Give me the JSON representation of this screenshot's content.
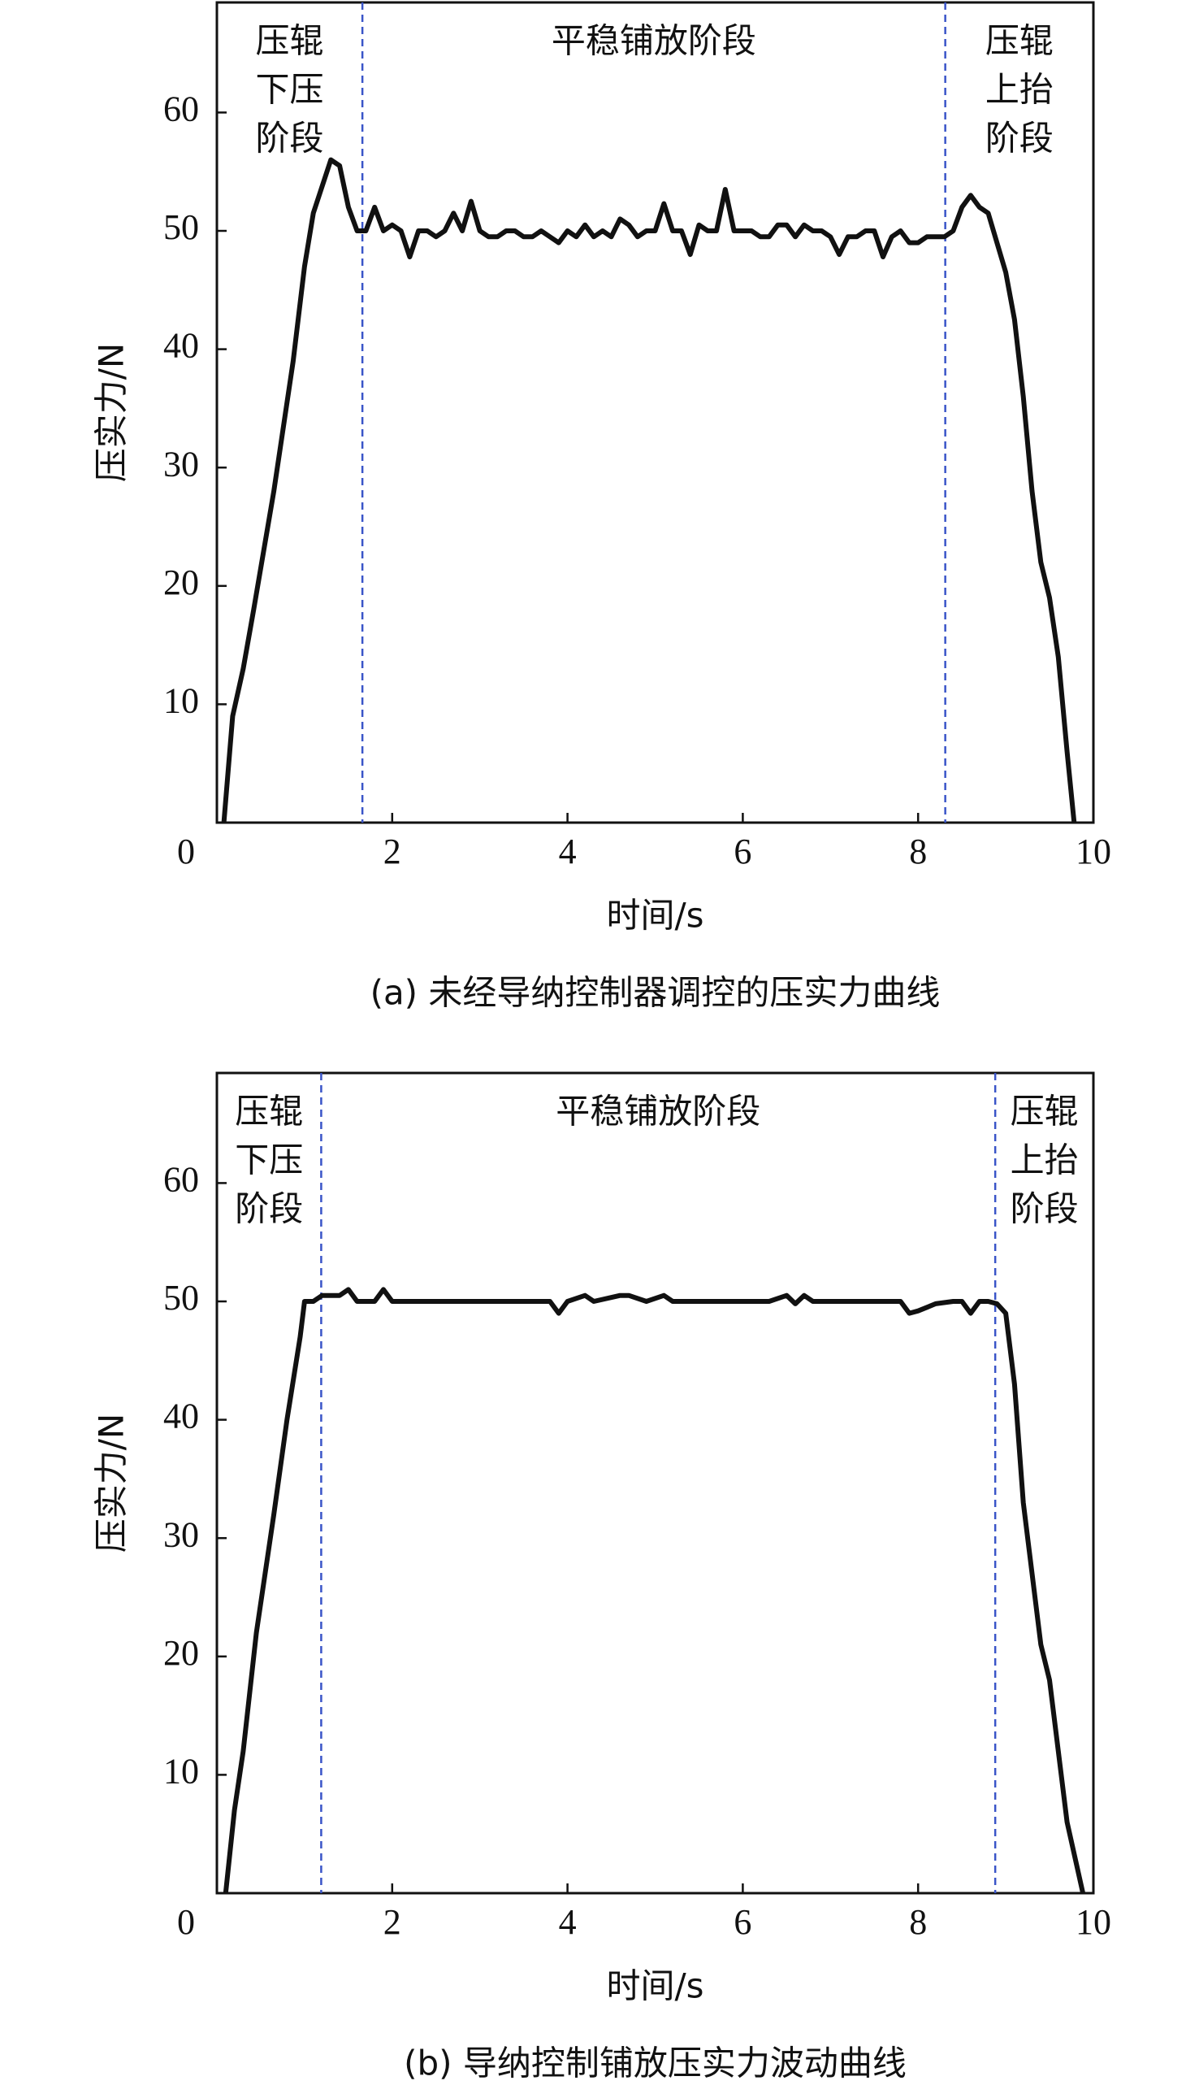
{
  "chart_data": [
    {
      "type": "line",
      "caption": "(a) 未经导纳控制器调控的压实力曲线",
      "xlabel": "时间/s",
      "ylabel": "压实力/N",
      "xlim": [
        0,
        10
      ],
      "ylim": [
        0,
        69.3
      ],
      "xticks": [
        0,
        2,
        4,
        6,
        8,
        10
      ],
      "yticks": [
        10,
        20,
        30,
        40,
        50,
        60
      ],
      "color": "#111111",
      "vline_color": "#3a55c8",
      "vlines": [
        1.66,
        8.31
      ],
      "phase_labels": [
        [
          "压辊",
          "下压",
          "阶段"
        ],
        [
          "平稳铺放阶段"
        ],
        [
          "压辊",
          "上抬",
          "阶段"
        ]
      ],
      "x": [
        0.08,
        0.18,
        0.3,
        0.42,
        0.65,
        0.87,
        1.0,
        1.1,
        1.3,
        1.4,
        1.5,
        1.6,
        1.7,
        1.8,
        1.9,
        2.0,
        2.1,
        2.2,
        2.3,
        2.4,
        2.5,
        2.6,
        2.7,
        2.8,
        2.9,
        3.0,
        3.1,
        3.2,
        3.3,
        3.4,
        3.5,
        3.6,
        3.7,
        3.8,
        3.9,
        4.0,
        4.1,
        4.2,
        4.3,
        4.4,
        4.5,
        4.6,
        4.7,
        4.8,
        4.9,
        5.0,
        5.1,
        5.2,
        5.3,
        5.4,
        5.5,
        5.6,
        5.7,
        5.8,
        5.9,
        6.0,
        6.1,
        6.2,
        6.3,
        6.4,
        6.5,
        6.6,
        6.7,
        6.8,
        6.9,
        7.0,
        7.1,
        7.2,
        7.3,
        7.4,
        7.5,
        7.6,
        7.7,
        7.8,
        7.9,
        8.0,
        8.1,
        8.2,
        8.3,
        8.4,
        8.5,
        8.6,
        8.7,
        8.8,
        8.9,
        9.0,
        9.1,
        9.2,
        9.3,
        9.4,
        9.5,
        9.6,
        9.7,
        9.78
      ],
      "values": [
        0,
        9,
        13,
        18,
        28,
        39,
        47,
        51.5,
        56,
        55.5,
        52,
        50,
        50,
        52,
        50,
        50.5,
        50,
        47.8,
        50,
        50,
        49.5,
        50,
        51.5,
        50,
        52.5,
        50,
        49.5,
        49.5,
        50,
        50,
        49.5,
        49.5,
        50,
        49.5,
        49,
        50,
        49.5,
        50.5,
        49.5,
        50,
        49.5,
        51,
        50.5,
        49.5,
        50,
        50,
        52.3,
        50,
        50,
        48,
        50.5,
        50,
        50,
        53.5,
        50,
        50,
        50,
        49.5,
        49.5,
        50.5,
        50.5,
        49.5,
        50.5,
        50,
        50,
        49.5,
        48,
        49.5,
        49.5,
        50,
        50,
        47.8,
        49.5,
        50,
        49,
        49,
        49.5,
        49.5,
        49.5,
        50,
        52,
        53,
        52,
        51.5,
        49,
        46.5,
        42.5,
        36,
        28,
        22,
        19,
        14,
        6,
        0
      ]
    },
    {
      "type": "line",
      "caption": "(b) 导纳控制铺放压实力波动曲线",
      "xlabel": "时间/s",
      "ylabel": "压实力/N",
      "xlim": [
        0,
        10
      ],
      "ylim": [
        0,
        69.3
      ],
      "xticks": [
        0,
        2,
        4,
        6,
        8,
        10
      ],
      "yticks": [
        10,
        20,
        30,
        40,
        50,
        60
      ],
      "color": "#111111",
      "vline_color": "#3a55c8",
      "vlines": [
        1.19,
        8.88
      ],
      "phase_labels": [
        [
          "压辊",
          "下压",
          "阶段"
        ],
        [
          "平稳铺放阶段"
        ],
        [
          "压辊",
          "上抬",
          "阶段"
        ]
      ],
      "x": [
        0.1,
        0.2,
        0.3,
        0.45,
        0.65,
        0.8,
        0.95,
        1.0,
        1.1,
        1.2,
        1.3,
        1.4,
        1.5,
        1.6,
        1.7,
        1.8,
        1.9,
        2.0,
        2.5,
        3.0,
        3.5,
        3.8,
        3.9,
        4.0,
        4.2,
        4.3,
        4.6,
        4.7,
        4.9,
        5.1,
        5.2,
        5.6,
        6.0,
        6.3,
        6.5,
        6.6,
        6.7,
        6.8,
        7.5,
        7.8,
        7.9,
        8.0,
        8.2,
        8.4,
        8.5,
        8.6,
        8.7,
        8.8,
        8.9,
        9.0,
        9.1,
        9.2,
        9.3,
        9.4,
        9.5,
        9.6,
        9.7,
        9.88
      ],
      "values": [
        0,
        7,
        12,
        22,
        32,
        40,
        47,
        50,
        50,
        50.5,
        50.5,
        50.5,
        51,
        50,
        50,
        50,
        51,
        50,
        50,
        50,
        50,
        50,
        49,
        50,
        50.5,
        50,
        50.5,
        50.5,
        50,
        50.5,
        50,
        50,
        50,
        50,
        50.5,
        49.8,
        50.5,
        50,
        50,
        50,
        49,
        49.2,
        49.8,
        50,
        50,
        49,
        50,
        50,
        49.8,
        49,
        43,
        33,
        27,
        21,
        18,
        12,
        6,
        0
      ]
    }
  ]
}
